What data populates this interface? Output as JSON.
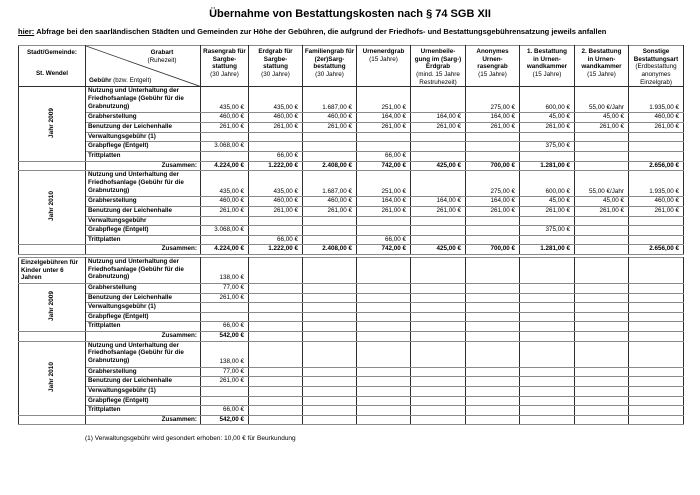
{
  "page": {
    "title": "Übernahme von Bestattungskosten nach § 74 SGB XII",
    "subtitle_label": "hier:",
    "subtitle_text": "Abfrage bei den saarländischen Städten und Gemeinden zur Höhe der Gebühren, die aufgrund der Friedhofs- und Bestattungsgebührensatzung jeweils anfallen",
    "footnote": "(1) Verwaltungsgebühr wird gesondert erhoben: 10,00 € für Beurkundung"
  },
  "header": {
    "stadt_label": "Stadt/Gemeinde:",
    "stadt_value": "St. Wendel",
    "grabart_label": "Grabart",
    "grabart_sub": "(Ruhezeit)",
    "gebuehr_label": "Gebühr",
    "gebuehr_sub": "(bzw. Entgelt)",
    "columns": [
      {
        "title": "Rasengrab für\nSargbe-\nstattung",
        "sub": "(30 Jahre)"
      },
      {
        "title": "Erdgrab für\nSargbe-\nstattung",
        "sub": "(30 Jahre)"
      },
      {
        "title": "Familiengrab für\n(2er)Sarg-\nbestattung",
        "sub": "(30 Jahre)"
      },
      {
        "title": "Urnenerdgrab",
        "sub": "(15 Jahre)"
      },
      {
        "title": "Urnenbeile-\ngung im (Sarg-)\nErdgrab",
        "sub": "(mind. 15 Jahre\nRestruhezeit)"
      },
      {
        "title": "Anonymes Urnen-\nrasengrab",
        "sub": "(15 Jahre)"
      },
      {
        "title": "1. Bestattung\nin Urnen-\nwandkammer",
        "sub": "(15 Jahre)"
      },
      {
        "title": "2. Bestattung\nin Urnen-\nwandkammer",
        "sub": "(15 Jahre)"
      },
      {
        "title": "Sonstige\nBestattungsart",
        "sub": "(Erdbestattung\nanonymes\nEinzelgrab)"
      }
    ]
  },
  "tables": [
    {
      "name": "Haupttabelle",
      "blocks": [
        {
          "year": "Jahr 2009",
          "rows": [
            {
              "label": "Nutzung und Unterhaltung der\nFriedhofsanlage (Gebühr für die\nGrabnutzung)",
              "values": [
                "435,00 €",
                "435,00 €",
                "1.687,00 €",
                "251,00 €",
                "",
                "275,00 €",
                "600,00 €",
                "55,00 €/Jahr",
                "1.935,00 €"
              ]
            },
            {
              "label": "Grabherstellung",
              "values": [
                "460,00 €",
                "460,00 €",
                "460,00 €",
                "164,00 €",
                "164,00 €",
                "164,00 €",
                "45,00 €",
                "45,00 €",
                "460,00 €"
              ]
            },
            {
              "label": "Benutzung der Leichenhalle",
              "values": [
                "261,00 €",
                "261,00 €",
                "261,00 €",
                "261,00 €",
                "261,00 €",
                "261,00 €",
                "261,00 €",
                "261,00 €",
                "261,00 €"
              ]
            },
            {
              "label": "Verwaltungsgebühr (1)",
              "values": [
                "",
                "",
                "",
                "",
                "",
                "",
                "",
                "",
                ""
              ]
            },
            {
              "label": "Grabpflege (Entgelt)",
              "values": [
                "3.068,00 €",
                "",
                "",
                "",
                "",
                "",
                "375,00 €",
                "",
                ""
              ]
            },
            {
              "label": "Trittplatten",
              "values": [
                "",
                "66,00 €",
                "",
                "66,00 €",
                "",
                "",
                "",
                "",
                ""
              ]
            },
            {
              "label": "Zusammen:",
              "values": [
                "4.224,00 €",
                "1.222,00 €",
                "2.408,00 €",
                "742,00 €",
                "425,00 €",
                "700,00 €",
                "1.281,00 €",
                "",
                "2.656,00 €"
              ]
            }
          ]
        },
        {
          "year": "Jahr 2010",
          "rows": [
            {
              "label": "Nutzung und Unterhaltung der\nFriedhofsanlage (Gebühr für die\nGrabnutzung)",
              "values": [
                "435,00 €",
                "435,00 €",
                "1.687,00 €",
                "251,00 €",
                "",
                "275,00 €",
                "600,00 €",
                "55,00 €/Jahr",
                "1.935,00 €"
              ]
            },
            {
              "label": "Grabherstellung",
              "values": [
                "460,00 €",
                "460,00 €",
                "460,00 €",
                "164,00 €",
                "164,00 €",
                "164,00 €",
                "45,00 €",
                "45,00 €",
                "460,00 €"
              ]
            },
            {
              "label": "Benutzung der Leichenhalle",
              "values": [
                "261,00 €",
                "261,00 €",
                "261,00 €",
                "261,00 €",
                "261,00 €",
                "261,00 €",
                "261,00 €",
                "261,00 €",
                "261,00 €"
              ]
            },
            {
              "label": "Verwaltungsgebühr",
              "values": [
                "",
                "",
                "",
                "",
                "",
                "",
                "",
                "",
                ""
              ]
            },
            {
              "label": "Grabpflege (Entgelt)",
              "values": [
                "3.068,00 €",
                "",
                "",
                "",
                "",
                "",
                "375,00 €",
                "",
                ""
              ]
            },
            {
              "label": "Trittplatten",
              "values": [
                "",
                "66,00 €",
                "",
                "66,00 €",
                "",
                "",
                "",
                "",
                ""
              ]
            },
            {
              "label": "Zusammen:",
              "values": [
                "4.224,00 €",
                "1.222,00 €",
                "2.408,00 €",
                "742,00 €",
                "425,00 €",
                "700,00 €",
                "1.281,00 €",
                "",
                "2.656,00 €"
              ]
            }
          ]
        }
      ]
    },
    {
      "name": "Einzelgebühren Kinder",
      "blocks": [
        {
          "year": "Jahr 2009",
          "corner": "Einzelgebühren für\nKinder unter 6 Jahren",
          "rows": [
            {
              "label": "Nutzung und Unterhaltung der\nFriedhofsanlage (Gebühr für die\nGrabnutzung)",
              "values": [
                "138,00 €",
                "",
                "",
                "",
                "",
                "",
                "",
                "",
                ""
              ]
            },
            {
              "label": "Grabherstellung",
              "values": [
                "77,00 €",
                "",
                "",
                "",
                "",
                "",
                "",
                "",
                ""
              ]
            },
            {
              "label": "Benutzung der Leichenhalle",
              "values": [
                "261,00 €",
                "",
                "",
                "",
                "",
                "",
                "",
                "",
                ""
              ]
            },
            {
              "label": "Verwaltungsgebühr (1)",
              "values": [
                "",
                "",
                "",
                "",
                "",
                "",
                "",
                "",
                ""
              ]
            },
            {
              "label": "Grabpflege (Entgelt)",
              "values": [
                "",
                "",
                "",
                "",
                "",
                "",
                "",
                "",
                ""
              ]
            },
            {
              "label": "Trittplatten",
              "values": [
                "66,00 €",
                "",
                "",
                "",
                "",
                "",
                "",
                "",
                ""
              ]
            },
            {
              "label": "Zusammen:",
              "values": [
                "542,00 €",
                "",
                "",
                "",
                "",
                "",
                "",
                "",
                ""
              ]
            }
          ]
        },
        {
          "year": "Jahr 2010",
          "rows": [
            {
              "label": "Nutzung und Unterhaltung der\nFriedhofsanlage (Gebühr für die\nGrabnutzung)",
              "values": [
                "138,00 €",
                "",
                "",
                "",
                "",
                "",
                "",
                "",
                ""
              ]
            },
            {
              "label": "Grabherstellung",
              "values": [
                "77,00 €",
                "",
                "",
                "",
                "",
                "",
                "",
                "",
                ""
              ]
            },
            {
              "label": "Benutzung der Leichenhalle",
              "values": [
                "261,00 €",
                "",
                "",
                "",
                "",
                "",
                "",
                "",
                ""
              ]
            },
            {
              "label": "Verwaltungsgebühr (1)",
              "values": [
                "",
                "",
                "",
                "",
                "",
                "",
                "",
                "",
                ""
              ]
            },
            {
              "label": "Grabpflege (Entgelt)",
              "values": [
                "",
                "",
                "",
                "",
                "",
                "",
                "",
                "",
                ""
              ]
            },
            {
              "label": "Trittplatten",
              "values": [
                "66,00 €",
                "",
                "",
                "",
                "",
                "",
                "",
                "",
                ""
              ]
            },
            {
              "label": "Zusammen:",
              "values": [
                "542,00 €",
                "",
                "",
                "",
                "",
                "",
                "",
                "",
                ""
              ]
            }
          ]
        }
      ]
    }
  ]
}
